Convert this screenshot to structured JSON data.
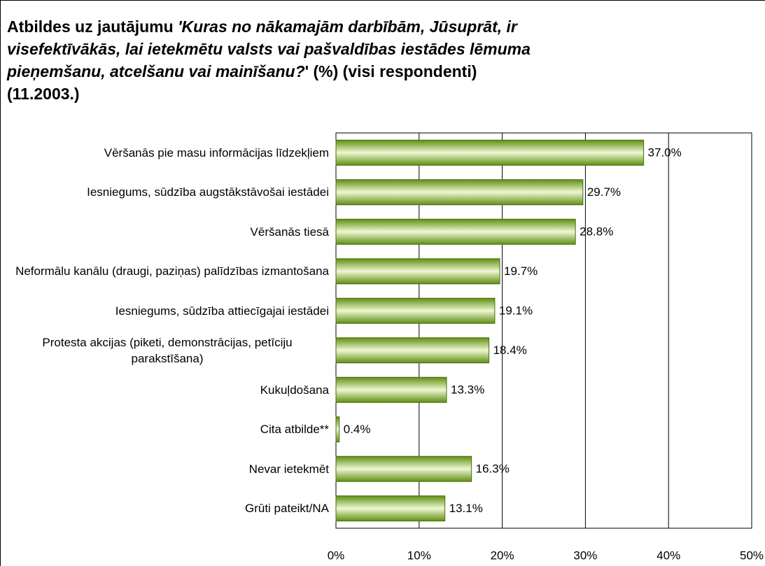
{
  "chart_data": {
    "type": "bar",
    "orientation": "horizontal",
    "title": [
      "Atbildes uz jautājumu ",
      "'Kuras no nākamajām darbībām, Jūsuprāt, ir visefektīvākās, lai ietekmētu valsts vai pašvaldības iestādes lēmuma pieņemšanu, atcelšanu vai mainīšanu?",
      "' (%) (visi respondenti) (11.2003.)"
    ],
    "categories": [
      "Vēršanās pie masu informācijas līdzekļiem",
      "Iesniegums, sūdzība augstākstāvošai iestādei",
      "Vēršanās tiesā",
      "Neformālu kanālu (draugi, paziņas) palīdzības izmantošana",
      "Iesniegums, sūdzība attiecīgajai iestādei",
      "Protesta akcijas (piketi, demonstrācijas, petīciju parakstīšana)",
      "Kukuļdošana",
      "Cita atbilde**",
      "Nevar ietekmēt",
      "Grūti pateikt/NA"
    ],
    "values": [
      37.0,
      29.7,
      28.8,
      19.7,
      19.1,
      18.4,
      13.3,
      0.4,
      16.3,
      13.1
    ],
    "value_labels": [
      "37.0%",
      "29.7%",
      "28.8%",
      "19.7%",
      "19.1%",
      "18.4%",
      "13.3%",
      "0.4%",
      "16.3%",
      "13.1%"
    ],
    "color": "#8cbf2a",
    "xlim": [
      0,
      50
    ],
    "xticks": [
      {
        "value": 0,
        "label": "0%"
      },
      {
        "value": 10,
        "label": "10%"
      },
      {
        "value": 20,
        "label": "20%"
      },
      {
        "value": 30,
        "label": "30%"
      },
      {
        "value": 40,
        "label": "40%"
      },
      {
        "value": 50,
        "label": "50%"
      }
    ],
    "grid": true
  }
}
